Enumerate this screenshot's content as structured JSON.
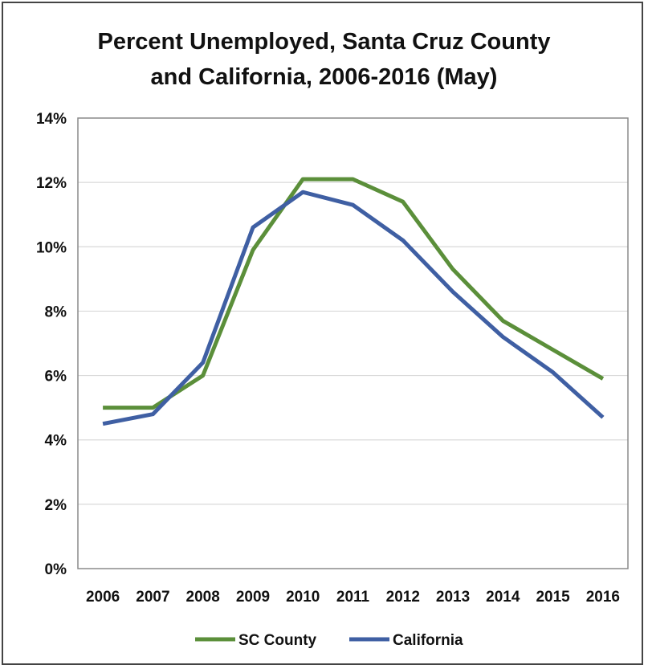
{
  "chart_data": {
    "type": "line",
    "title_lines": [
      "Percent Unemployed, Santa Cruz County",
      "and California, 2006-2016 (May)"
    ],
    "x": [
      "2006",
      "2007",
      "2008",
      "2009",
      "2010",
      "2011",
      "2012",
      "2013",
      "2014",
      "2015",
      "2016"
    ],
    "y_ticks": [
      "0%",
      "2%",
      "4%",
      "6%",
      "8%",
      "10%",
      "12%",
      "14%"
    ],
    "ylim": [
      0,
      14
    ],
    "grid": true,
    "legend_position": "bottom",
    "series": [
      {
        "name": "SC County",
        "color": "#5b8f3a",
        "values": [
          5.0,
          5.0,
          6.0,
          9.9,
          12.1,
          12.1,
          11.4,
          9.3,
          7.7,
          6.8,
          5.9
        ]
      },
      {
        "name": "California",
        "color": "#3f5fa3",
        "values": [
          4.5,
          4.8,
          6.4,
          10.6,
          11.7,
          11.3,
          10.2,
          8.6,
          7.2,
          6.1,
          4.7
        ]
      }
    ]
  }
}
